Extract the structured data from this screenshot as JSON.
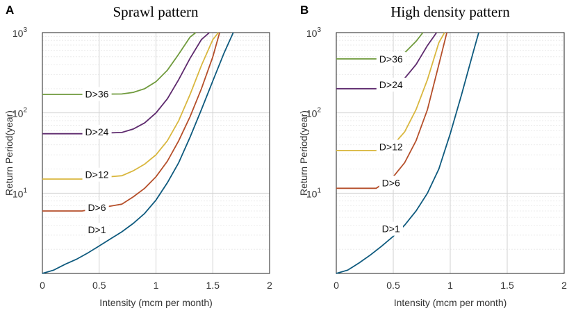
{
  "chart_data": [
    {
      "type": "line",
      "panel_label": "A",
      "title": "Sprawl pattern",
      "xlabel": "Intensity (mcm per month)",
      "ylabel": "Return Period(year)",
      "xlim": [
        0,
        2
      ],
      "ylim": [
        1,
        1000
      ],
      "yscale": "log",
      "grid": true,
      "xticks": [
        "0",
        "0.5",
        "1",
        "1.5",
        "2"
      ],
      "yticks": [
        {
          "base": "10",
          "exp": "1",
          "value": 10
        },
        {
          "base": "10",
          "exp": "2",
          "value": 100
        },
        {
          "base": "10",
          "exp": "3",
          "value": 1000
        }
      ],
      "series": [
        {
          "name": "D>1",
          "color": "#0e5a7e",
          "label_at": [
            0.48,
            3.5
          ],
          "x": [
            0.0,
            0.1,
            0.2,
            0.3,
            0.4,
            0.5,
            0.6,
            0.7,
            0.8,
            0.9,
            1.0,
            1.1,
            1.2,
            1.3,
            1.4,
            1.5,
            1.6,
            1.68
          ],
          "y": [
            1.0,
            1.1,
            1.3,
            1.5,
            1.8,
            2.2,
            2.7,
            3.3,
            4.2,
            5.6,
            8.2,
            13.5,
            24,
            50,
            110,
            250,
            560,
            1000
          ]
        },
        {
          "name": "D>6",
          "color": "#b54f2a",
          "label_at": [
            0.48,
            6.6
          ],
          "x": [
            0.0,
            0.35,
            0.7,
            0.8,
            0.9,
            1.0,
            1.1,
            1.2,
            1.3,
            1.4,
            1.5,
            1.56
          ],
          "y": [
            6.0,
            6.0,
            7.3,
            9.0,
            11.5,
            16,
            25,
            45,
            90,
            200,
            500,
            1000
          ]
        },
        {
          "name": "D>12",
          "color": "#d9b73e",
          "label_at": [
            0.48,
            17
          ],
          "x": [
            0.0,
            0.35,
            0.7,
            0.8,
            0.9,
            1.0,
            1.1,
            1.2,
            1.3,
            1.4,
            1.5,
            1.55
          ],
          "y": [
            15,
            15,
            16.5,
            19,
            23,
            30,
            45,
            80,
            170,
            390,
            820,
            1000
          ]
        },
        {
          "name": "D>24",
          "color": "#5e2a6e",
          "label_at": [
            0.48,
            58
          ],
          "x": [
            0.0,
            0.35,
            0.7,
            0.8,
            0.9,
            1.0,
            1.1,
            1.2,
            1.3,
            1.4,
            1.47
          ],
          "y": [
            55,
            55,
            57,
            63,
            75,
            100,
            150,
            260,
            480,
            820,
            1000
          ]
        },
        {
          "name": "D>36",
          "color": "#6f9a3c",
          "label_at": [
            0.48,
            172
          ],
          "x": [
            0.0,
            0.35,
            0.7,
            0.8,
            0.9,
            1.0,
            1.1,
            1.2,
            1.3,
            1.35
          ],
          "y": [
            170,
            170,
            172,
            180,
            200,
            245,
            340,
            540,
            880,
            1000
          ]
        }
      ]
    },
    {
      "type": "line",
      "panel_label": "B",
      "title": "High density pattern",
      "xlabel": "Intensity (mcm per month)",
      "ylabel": "Return Period(year)",
      "xlim": [
        0,
        2
      ],
      "ylim": [
        1,
        1000
      ],
      "yscale": "log",
      "grid": true,
      "xticks": [
        "0",
        "0.5",
        "1",
        "1.5",
        "2"
      ],
      "yticks": [
        {
          "base": "10",
          "exp": "1",
          "value": 10
        },
        {
          "base": "10",
          "exp": "2",
          "value": 100
        },
        {
          "base": "10",
          "exp": "3",
          "value": 1000
        }
      ],
      "series": [
        {
          "name": "D>1",
          "color": "#0e5a7e",
          "label_at": [
            0.48,
            3.6
          ],
          "x": [
            0.0,
            0.1,
            0.2,
            0.3,
            0.4,
            0.5,
            0.6,
            0.7,
            0.8,
            0.9,
            1.0,
            1.1,
            1.2,
            1.25
          ],
          "y": [
            1.0,
            1.1,
            1.35,
            1.7,
            2.2,
            2.9,
            4.0,
            6.0,
            10,
            20,
            55,
            170,
            560,
            1000
          ]
        },
        {
          "name": "D>6",
          "color": "#b54f2a",
          "label_at": [
            0.48,
            13.5
          ],
          "x": [
            0.0,
            0.35,
            0.5,
            0.6,
            0.7,
            0.8,
            0.9,
            0.97
          ],
          "y": [
            11.5,
            11.5,
            16,
            24,
            45,
            110,
            400,
            1000
          ]
        },
        {
          "name": "D>12",
          "color": "#d9b73e",
          "label_at": [
            0.48,
            38
          ],
          "x": [
            0.0,
            0.35,
            0.5,
            0.6,
            0.7,
            0.8,
            0.9,
            0.95
          ],
          "y": [
            34,
            34,
            40,
            58,
            110,
            260,
            750,
            1000
          ]
        },
        {
          "name": "D>24",
          "color": "#5e2a6e",
          "label_at": [
            0.48,
            225
          ],
          "x": [
            0.0,
            0.35,
            0.5,
            0.6,
            0.7,
            0.8,
            0.88
          ],
          "y": [
            200,
            200,
            215,
            270,
            400,
            690,
            1000
          ]
        },
        {
          "name": "D>36",
          "color": "#6f9a3c",
          "label_at": [
            0.48,
            470
          ],
          "x": [
            0.0,
            0.35,
            0.5,
            0.6,
            0.7,
            0.76
          ],
          "y": [
            470,
            470,
            490,
            560,
            780,
            1000
          ]
        }
      ]
    }
  ]
}
